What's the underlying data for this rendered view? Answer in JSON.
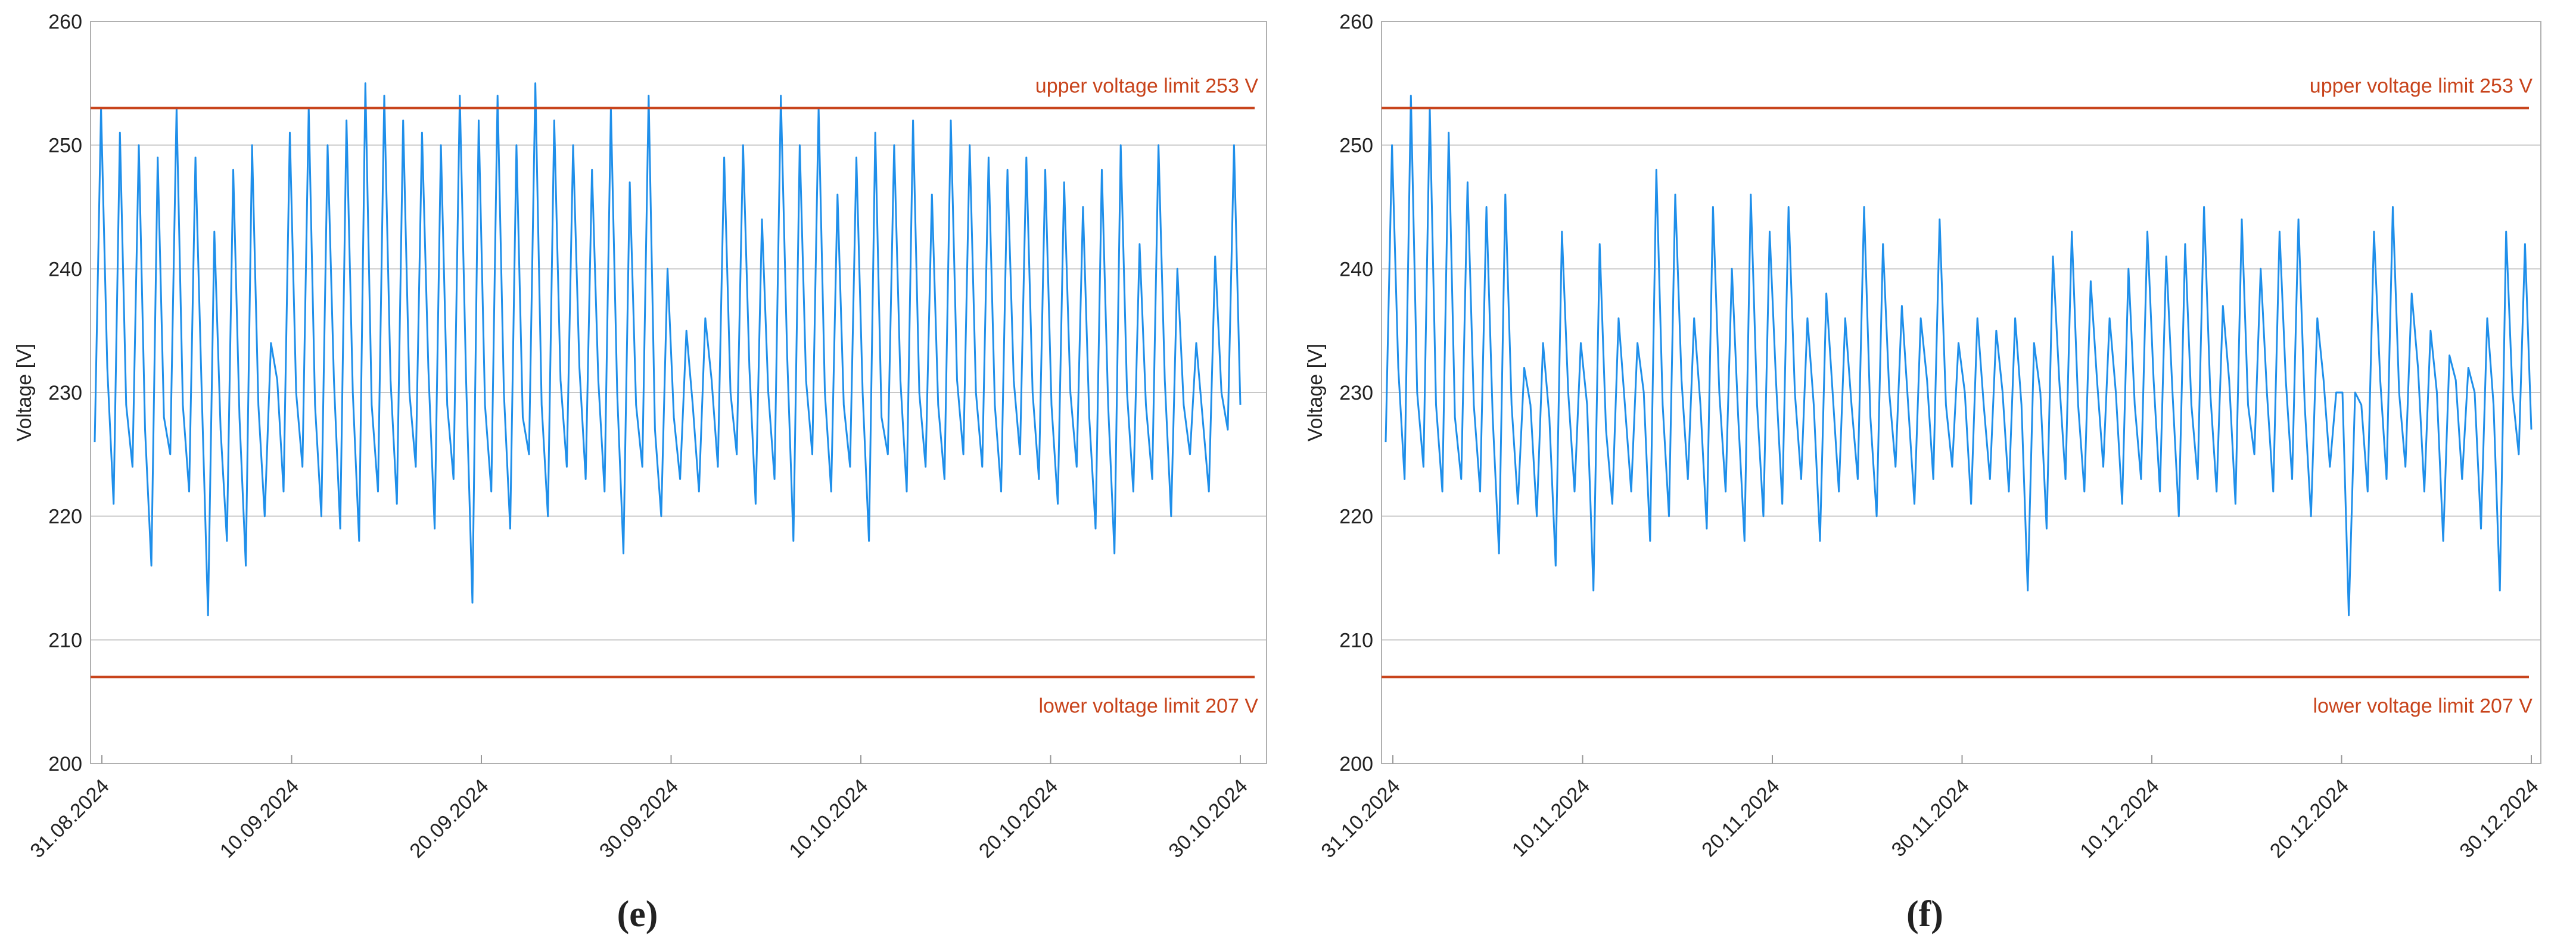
{
  "chart_data": [
    {
      "type": "line",
      "panel_label": "(e)",
      "ylabel": "Voltage [V]",
      "color": "#1f8fea",
      "ylim": [
        200,
        260
      ],
      "yticks": [
        200,
        210,
        220,
        230,
        240,
        250,
        260
      ],
      "grid": true,
      "xticks": [
        "31.08.2024",
        "10.09.2024",
        "20.09.2024",
        "30.09.2024",
        "10.10.2024",
        "20.10.2024",
        "30.10.2024"
      ],
      "limits": [
        {
          "label": "upper voltage limit 253 V",
          "value": 253,
          "color": "#c8441c",
          "position": "above"
        },
        {
          "label": "lower voltage limit 207 V",
          "value": 207,
          "color": "#c8441c",
          "position": "below"
        }
      ],
      "values": [
        226,
        253,
        232,
        221,
        251,
        229,
        224,
        250,
        227,
        216,
        249,
        228,
        225,
        253,
        229,
        222,
        249,
        230,
        212,
        243,
        227,
        218,
        248,
        228,
        216,
        250,
        229,
        220,
        234,
        231,
        222,
        251,
        230,
        224,
        253,
        229,
        220,
        250,
        231,
        219,
        252,
        230,
        218,
        255,
        229,
        222,
        254,
        231,
        221,
        252,
        230,
        224,
        251,
        232,
        219,
        250,
        229,
        223,
        254,
        231,
        213,
        252,
        229,
        222,
        254,
        230,
        219,
        250,
        228,
        225,
        255,
        229,
        220,
        252,
        231,
        224,
        250,
        232,
        223,
        248,
        231,
        222,
        253,
        230,
        217,
        247,
        229,
        224,
        254,
        227,
        220,
        240,
        228,
        223,
        235,
        229,
        222,
        236,
        231,
        224,
        249,
        230,
        225,
        250,
        232,
        221,
        244,
        230,
        223,
        254,
        233,
        218,
        250,
        231,
        225,
        253,
        230,
        222,
        246,
        229,
        224,
        249,
        230,
        218,
        251,
        228,
        225,
        250,
        231,
        222,
        252,
        230,
        224,
        246,
        229,
        223,
        252,
        231,
        225,
        250,
        230,
        224,
        249,
        229,
        222,
        248,
        231,
        225,
        249,
        230,
        223,
        248,
        229,
        221,
        247,
        230,
        224,
        245,
        228,
        219,
        248,
        229,
        217,
        250,
        230,
        222,
        242,
        229,
        223,
        250,
        231,
        220,
        240,
        229,
        225,
        234,
        228,
        222,
        241,
        230,
        227,
        250,
        229
      ]
    },
    {
      "type": "line",
      "panel_label": "(f)",
      "ylabel": "Voltage [V]",
      "color": "#1f8fea",
      "ylim": [
        200,
        260
      ],
      "yticks": [
        200,
        210,
        220,
        230,
        240,
        250,
        260
      ],
      "grid": true,
      "xticks": [
        "31.10.2024",
        "10.11.2024",
        "20.11.2024",
        "30.11.2024",
        "10.12.2024",
        "20.12.2024",
        "30.12.2024"
      ],
      "limits": [
        {
          "label": "upper voltage limit 253 V",
          "value": 253,
          "color": "#c8441c",
          "position": "above"
        },
        {
          "label": "lower voltage limit 207 V",
          "value": 207,
          "color": "#c8441c",
          "position": "below"
        }
      ],
      "values": [
        226,
        250,
        232,
        223,
        254,
        230,
        224,
        253,
        229,
        222,
        251,
        228,
        223,
        247,
        229,
        222,
        245,
        228,
        217,
        246,
        229,
        221,
        232,
        229,
        220,
        234,
        228,
        216,
        243,
        230,
        222,
        234,
        229,
        214,
        242,
        227,
        221,
        236,
        229,
        222,
        234,
        230,
        218,
        248,
        229,
        220,
        246,
        231,
        223,
        236,
        229,
        219,
        245,
        230,
        222,
        240,
        228,
        218,
        246,
        229,
        220,
        243,
        231,
        221,
        245,
        230,
        223,
        236,
        229,
        218,
        238,
        230,
        222,
        236,
        229,
        223,
        245,
        228,
        220,
        242,
        230,
        224,
        237,
        229,
        221,
        236,
        231,
        223,
        244,
        229,
        224,
        234,
        230,
        221,
        236,
        229,
        223,
        235,
        230,
        222,
        236,
        229,
        214,
        234,
        230,
        219,
        241,
        231,
        223,
        243,
        229,
        222,
        239,
        231,
        224,
        236,
        230,
        221,
        240,
        229,
        223,
        243,
        231,
        222,
        241,
        230,
        220,
        242,
        229,
        223,
        245,
        230,
        222,
        237,
        231,
        221,
        244,
        229,
        225,
        240,
        230,
        222,
        243,
        231,
        223,
        244,
        229,
        220,
        236,
        231,
        224,
        230,
        230,
        212,
        230,
        229,
        222,
        243,
        231,
        223,
        245,
        230,
        224,
        238,
        232,
        222,
        235,
        230,
        218,
        233,
        231,
        223,
        232,
        230,
        219,
        236,
        229,
        214,
        243,
        230,
        225,
        242,
        227
      ]
    }
  ]
}
